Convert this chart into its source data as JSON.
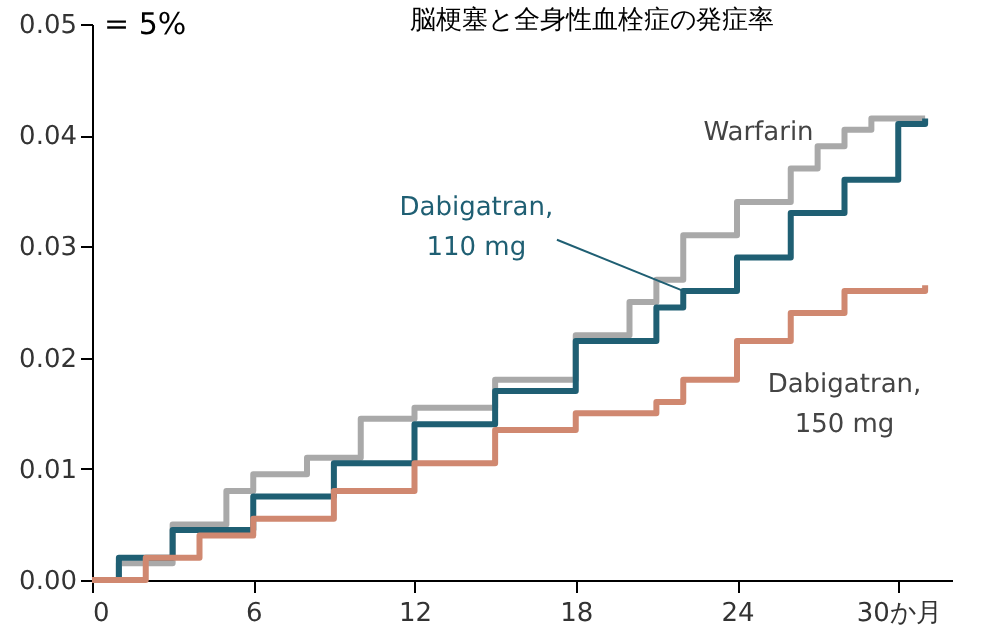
{
  "chart_data": {
    "type": "step",
    "title": "脳梗塞と全身性血栓症の発症率",
    "annotations": [
      "= 5%"
    ],
    "xlim": [
      0,
      32
    ],
    "xticks": [
      0,
      6,
      12,
      18,
      24,
      {
        "value": 30,
        "label": "30か月"
      }
    ],
    "ylim": [
      0,
      0.05
    ],
    "yticks": [
      {
        "value": 0,
        "label": "0.00"
      },
      0.01,
      0.02,
      0.03,
      0.04,
      0.05
    ],
    "grid": false,
    "legend": false,
    "line_style": "solid",
    "marker": "none",
    "series": [
      {
        "name": "Warfarin",
        "color": "#a9a9a9",
        "x": [
          0,
          1,
          3,
          5,
          6,
          8,
          10,
          12,
          15,
          18,
          20,
          21,
          22,
          24,
          26,
          27,
          28,
          29,
          31
        ],
        "values": [
          0,
          0.0015,
          0.005,
          0.008,
          0.0095,
          0.011,
          0.0145,
          0.0155,
          0.018,
          0.022,
          0.025,
          0.027,
          0.031,
          0.034,
          0.037,
          0.039,
          0.0405,
          0.0415,
          0.0415
        ]
      },
      {
        "name": "Dabigatran,\n110 mg",
        "color": "#1f5f73",
        "x": [
          0,
          1,
          3,
          6,
          9,
          12,
          15,
          18,
          21,
          22,
          24,
          26,
          28,
          30,
          31
        ],
        "values": [
          0,
          0.002,
          0.0045,
          0.0075,
          0.0105,
          0.014,
          0.017,
          0.0215,
          0.0245,
          0.026,
          0.029,
          0.033,
          0.036,
          0.041,
          0.0415
        ]
      },
      {
        "name": "Dabigatran,\n150 mg",
        "color": "#d08870",
        "x": [
          0,
          2,
          4,
          6,
          9,
          12,
          15,
          18,
          21,
          22,
          24,
          26,
          28,
          31
        ],
        "values": [
          0,
          0.002,
          0.004,
          0.0055,
          0.008,
          0.0105,
          0.0135,
          0.015,
          0.016,
          0.018,
          0.0215,
          0.024,
          0.026,
          0.0265
        ]
      }
    ]
  }
}
